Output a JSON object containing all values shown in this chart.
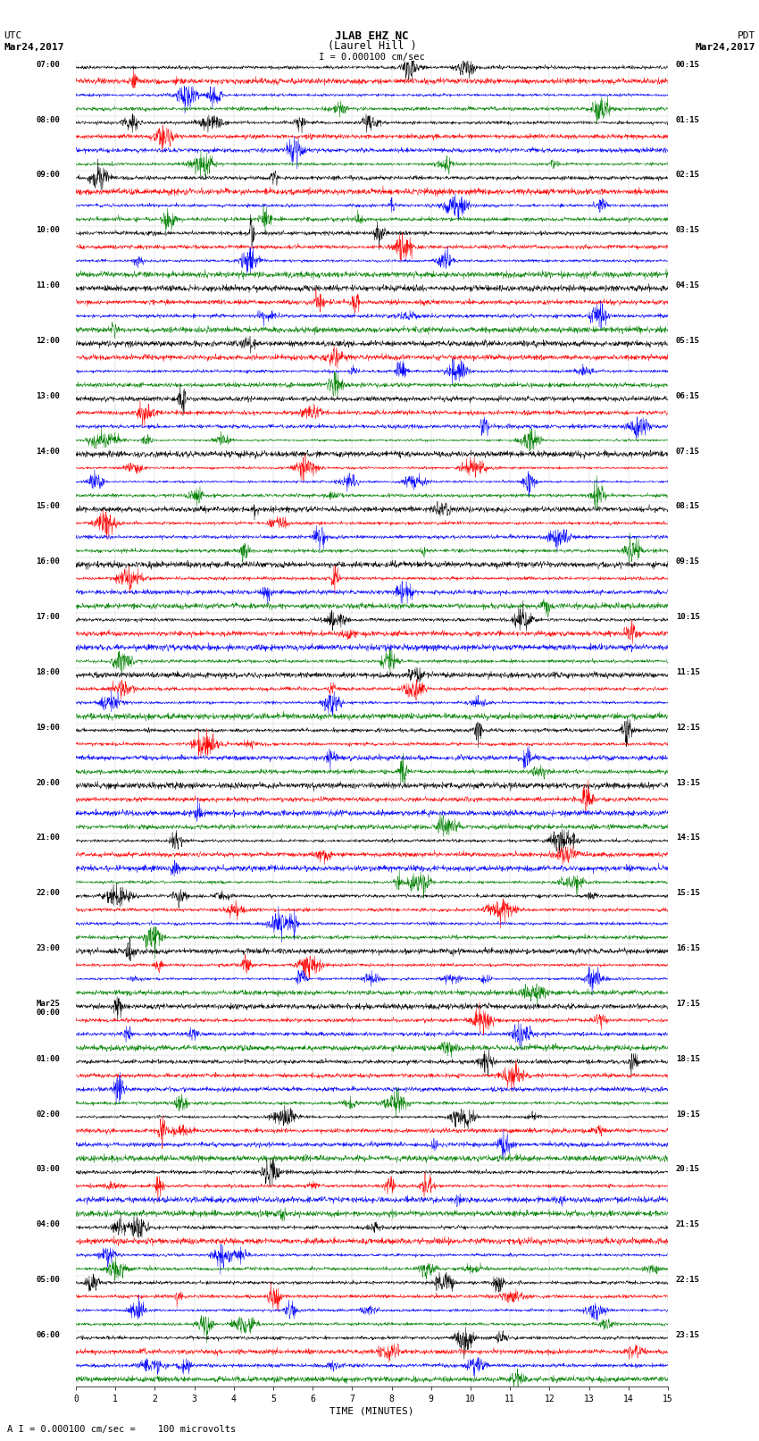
{
  "title_line1": "JLAB EHZ NC",
  "title_line2": "(Laurel Hill )",
  "scale_label": "I = 0.000100 cm/sec",
  "left_header_line1": "UTC",
  "left_header_line2": "Mar24,2017",
  "right_header_line1": "PDT",
  "right_header_line2": "Mar24,2017",
  "xlabel": "TIME (MINUTES)",
  "footer": "A I = 0.000100 cm/sec =    100 microvolts",
  "num_hour_groups": 24,
  "traces_per_group": 4,
  "colors": [
    "black",
    "red",
    "blue",
    "green"
  ],
  "bg_color": "white",
  "xmin": 0,
  "xmax": 15,
  "xticks": [
    0,
    1,
    2,
    3,
    4,
    5,
    6,
    7,
    8,
    9,
    10,
    11,
    12,
    13,
    14,
    15
  ],
  "left_time_labels": [
    "07:00",
    "08:00",
    "09:00",
    "10:00",
    "11:00",
    "12:00",
    "13:00",
    "14:00",
    "15:00",
    "16:00",
    "17:00",
    "18:00",
    "19:00",
    "20:00",
    "21:00",
    "22:00",
    "23:00",
    "Mar25\n00:00",
    "01:00",
    "02:00",
    "03:00",
    "04:00",
    "05:00",
    "06:00"
  ],
  "right_time_labels": [
    "00:15",
    "01:15",
    "02:15",
    "03:15",
    "04:15",
    "05:15",
    "06:15",
    "07:15",
    "08:15",
    "09:15",
    "10:15",
    "11:15",
    "12:15",
    "13:15",
    "14:15",
    "15:15",
    "16:15",
    "17:15",
    "18:15",
    "19:15",
    "20:15",
    "21:15",
    "22:15",
    "23:15"
  ]
}
